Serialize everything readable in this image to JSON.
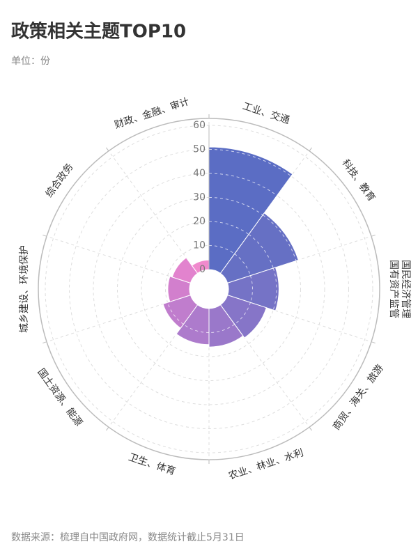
{
  "chart_data": {
    "type": "polar-bar",
    "title": "政策相关主题TOP10",
    "subtitle": "单位：份",
    "source": "数据来源：梳理自中国政府网，数据统计截止5月31日",
    "categories": [
      [
        "工业、交通"
      ],
      [
        "科技、教育"
      ],
      [
        "国民经济管理",
        "国有资产监管"
      ],
      [
        "商贸、海关、旅游"
      ],
      [
        "农业、林业、水利"
      ],
      [
        "卫生、体育"
      ],
      [
        "国土资源、能源"
      ],
      [
        "城乡建设、环境保护"
      ],
      [
        "综合政务"
      ],
      [
        "财政、金融、审计"
      ]
    ],
    "values": [
      51,
      31,
      21,
      17,
      16,
      15,
      12,
      9,
      8,
      4
    ],
    "colors": [
      "#5b6dc4",
      "#6670c4",
      "#7573c6",
      "#8675c8",
      "#9a78ca",
      "#ad7bcc",
      "#c07dcd",
      "#d27fcd",
      "#e283ce",
      "#f08acd"
    ],
    "ylim": [
      0,
      60
    ],
    "yticks": [
      0,
      10,
      20,
      30,
      40,
      50,
      60
    ],
    "grid": true
  }
}
